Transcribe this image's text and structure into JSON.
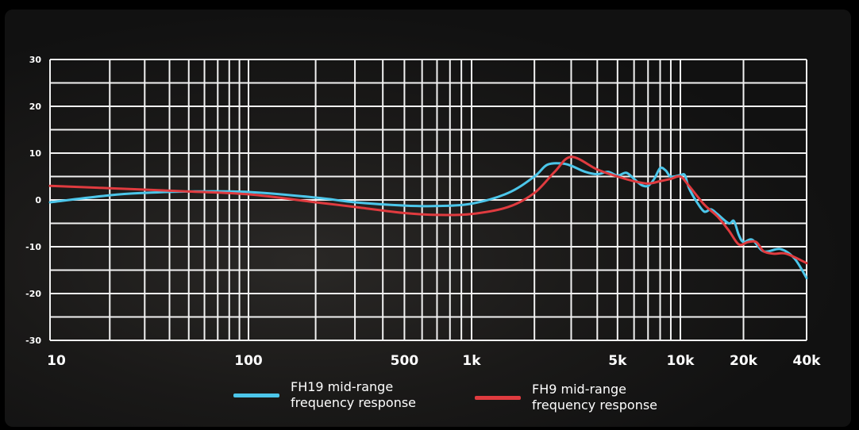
{
  "chart_data": {
    "type": "line",
    "x_scale": "log",
    "xlim": [
      10,
      40000
    ],
    "ylim": [
      -30,
      30
    ],
    "grid": true,
    "legend_position": "bottom",
    "x_tick_labels": [
      "10",
      "100",
      "500",
      "1k",
      "5k",
      "10k",
      "20k",
      "40k"
    ],
    "x_ticks": [
      10,
      100,
      500,
      1000,
      5000,
      10000,
      20000,
      40000
    ],
    "y_ticks": [
      30,
      20,
      10,
      0,
      -10,
      -20,
      -30
    ],
    "y_tick_labels": [
      "30",
      "20",
      "10",
      "0",
      "-10",
      "-20",
      "-30"
    ],
    "series": [
      {
        "name": "FH19 mid-range frequency response",
        "label_line1": "FH19 mid-range",
        "label_line2": "frequency response",
        "color": "#4cc6ea",
        "points": [
          [
            10,
            -0.5
          ],
          [
            20,
            1
          ],
          [
            30,
            1.5
          ],
          [
            50,
            1.8
          ],
          [
            100,
            1.7
          ],
          [
            200,
            0.5
          ],
          [
            300,
            -0.5
          ],
          [
            500,
            -1.2
          ],
          [
            700,
            -1.3
          ],
          [
            1000,
            -0.8
          ],
          [
            1500,
            1.5
          ],
          [
            2000,
            5
          ],
          [
            2300,
            7.5
          ],
          [
            2700,
            7.8
          ],
          [
            3000,
            7.3
          ],
          [
            3500,
            6
          ],
          [
            4000,
            5.5
          ],
          [
            4500,
            6
          ],
          [
            5000,
            5.2
          ],
          [
            5500,
            5.8
          ],
          [
            6000,
            4.5
          ],
          [
            6500,
            3.2
          ],
          [
            7000,
            3
          ],
          [
            7500,
            4.5
          ],
          [
            8000,
            6.8
          ],
          [
            8500,
            6.3
          ],
          [
            9000,
            5
          ],
          [
            10000,
            5.3
          ],
          [
            10500,
            5.3
          ],
          [
            11000,
            2.5
          ],
          [
            12000,
            -0.5
          ],
          [
            13000,
            -2.5
          ],
          [
            14000,
            -2
          ],
          [
            15000,
            -3
          ],
          [
            17000,
            -5
          ],
          [
            18000,
            -4.5
          ],
          [
            19000,
            -7.5
          ],
          [
            20000,
            -9
          ],
          [
            22000,
            -8.5
          ],
          [
            25000,
            -11
          ],
          [
            30000,
            -10.5
          ],
          [
            35000,
            -12.5
          ],
          [
            40000,
            -16.7
          ]
        ]
      },
      {
        "name": "FH9 mid-range frequency response",
        "label_line1": "FH9 mid-range",
        "label_line2": "frequency response",
        "color": "#e03b3f",
        "points": [
          [
            10,
            3
          ],
          [
            20,
            2.5
          ],
          [
            50,
            1.8
          ],
          [
            100,
            1.2
          ],
          [
            200,
            -0.5
          ],
          [
            300,
            -1.5
          ],
          [
            500,
            -2.8
          ],
          [
            700,
            -3.2
          ],
          [
            1000,
            -3
          ],
          [
            1500,
            -1.5
          ],
          [
            2000,
            1.5
          ],
          [
            2500,
            6
          ],
          [
            3000,
            9.2
          ],
          [
            4000,
            6.5
          ],
          [
            5000,
            5
          ],
          [
            6000,
            4
          ],
          [
            7000,
            3.5
          ],
          [
            8000,
            4
          ],
          [
            9000,
            4.5
          ],
          [
            10000,
            5
          ],
          [
            11000,
            3
          ],
          [
            13000,
            -1
          ],
          [
            15000,
            -3.5
          ],
          [
            17000,
            -6.5
          ],
          [
            19000,
            -9.5
          ],
          [
            21000,
            -9
          ],
          [
            23000,
            -9
          ],
          [
            25000,
            -11
          ],
          [
            28000,
            -11.5
          ],
          [
            32000,
            -11.5
          ],
          [
            40000,
            -13.5
          ]
        ]
      }
    ]
  }
}
